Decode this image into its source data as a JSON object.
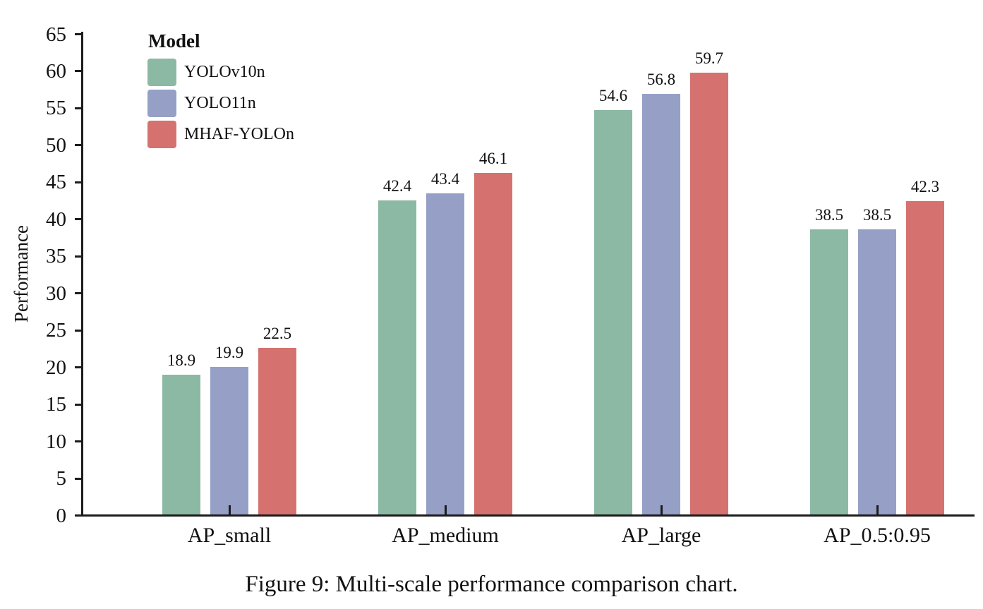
{
  "caption": "Figure 9: Multi-scale performance comparison chart.",
  "legend": {
    "title": "Model"
  },
  "chart_data": {
    "type": "bar",
    "title": "",
    "xlabel": "",
    "ylabel": "Performance",
    "categories": [
      "AP_small",
      "AP_medium",
      "AP_large",
      "AP_0.5:0.95"
    ],
    "series": [
      {
        "name": "YOLOv10n",
        "color": "#8CB9A3",
        "values": [
          18.9,
          42.4,
          54.6,
          38.5
        ]
      },
      {
        "name": "YOLO11n",
        "color": "#96A0C6",
        "values": [
          19.9,
          43.4,
          56.8,
          38.5
        ]
      },
      {
        "name": "MHAF-YOLOn",
        "color": "#D5726F",
        "values": [
          22.5,
          46.1,
          59.7,
          42.3
        ]
      }
    ],
    "ylim": [
      0,
      65
    ],
    "ytick_step": 5,
    "grid": false,
    "legend_position": "upper-left",
    "bar_value_labels": true,
    "axis_color": "#1c1c1c",
    "text_color": "#111111"
  }
}
